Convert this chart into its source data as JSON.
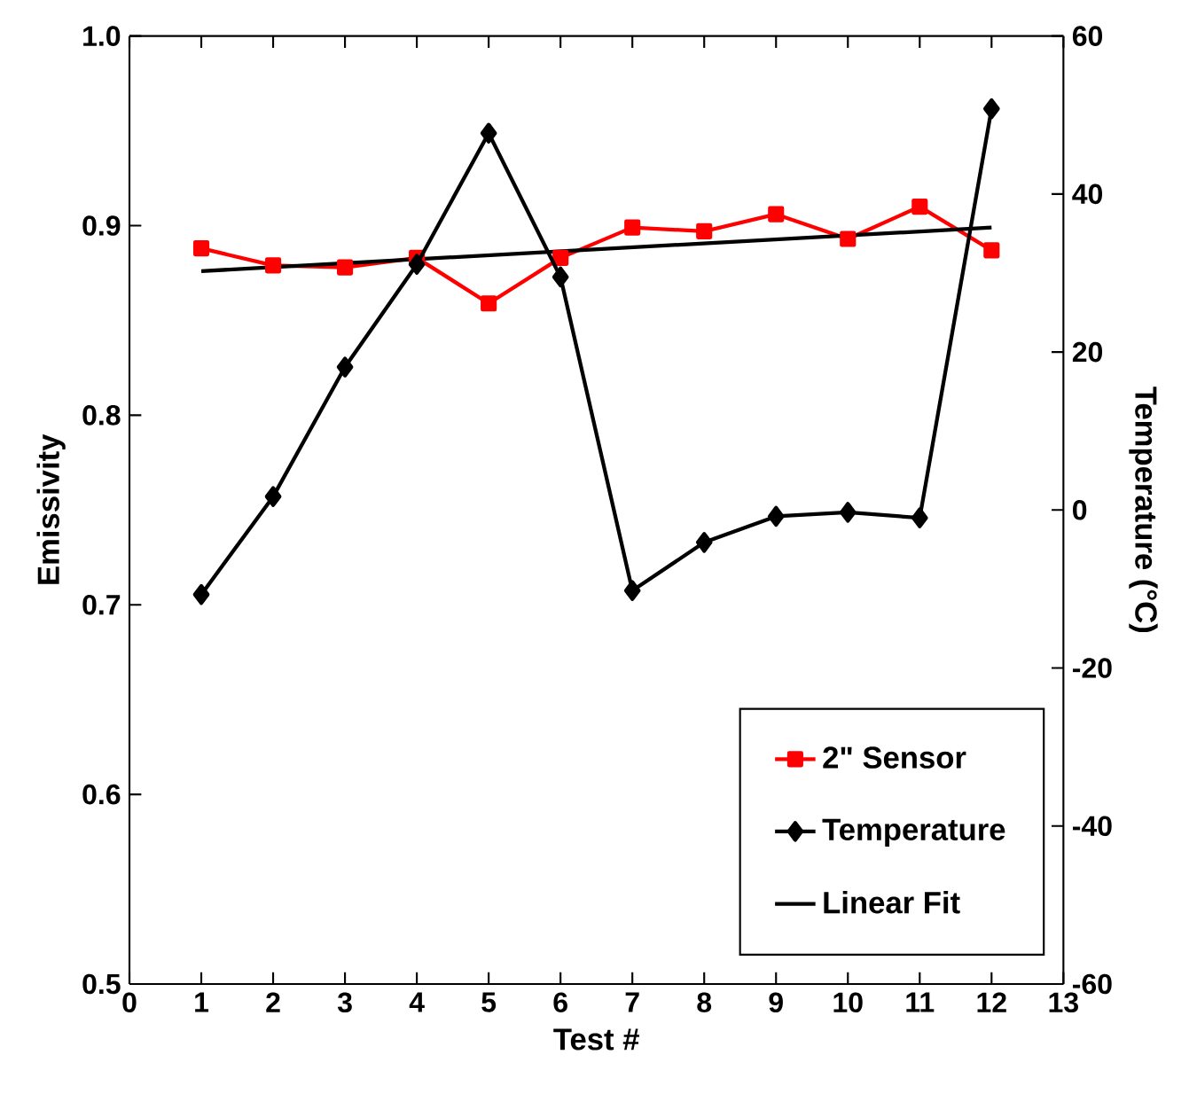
{
  "chart_data": {
    "type": "line",
    "xlabel": "Test #",
    "ylabel": "Emissivity",
    "y2label": "Temperature (°C)",
    "x": [
      1,
      2,
      3,
      4,
      5,
      6,
      7,
      8,
      9,
      10,
      11,
      12
    ],
    "xlim": [
      0,
      13
    ],
    "xticks": [
      0,
      1,
      2,
      3,
      4,
      5,
      6,
      7,
      8,
      9,
      10,
      11,
      12,
      13
    ],
    "ylim": [
      0.5,
      1.0
    ],
    "yticks": [
      0.5,
      0.6,
      0.7,
      0.8,
      0.9,
      {
        "value": 1.0,
        "label": "1.0"
      }
    ],
    "y2lim": [
      -60,
      60
    ],
    "y2ticks": [
      -60,
      -40,
      -20,
      0,
      20,
      40,
      60
    ],
    "legend": "bottom right",
    "line_style": "solid",
    "series": [
      {
        "name": "2\" Sensor",
        "color": "#ff0000",
        "marker": "square",
        "values": [
          0.888,
          0.879,
          0.878,
          0.883,
          0.859,
          0.883,
          0.899,
          0.897,
          0.906,
          0.893,
          0.91,
          0.887
        ]
      },
      {
        "name": "Temperature",
        "color": "#000000",
        "marker": "diamond",
        "axis": "y2",
        "values": [
          -10.7,
          1.7,
          18.1,
          31.1,
          47.7,
          29.5,
          -10.2,
          -4.1,
          -0.8,
          -0.3,
          -1.0,
          50.8
        ]
      },
      {
        "name": "Linear Fit",
        "color": "#000000",
        "marker": "none",
        "x": [
          1,
          12
        ],
        "values": [
          0.876,
          0.899
        ]
      }
    ]
  }
}
